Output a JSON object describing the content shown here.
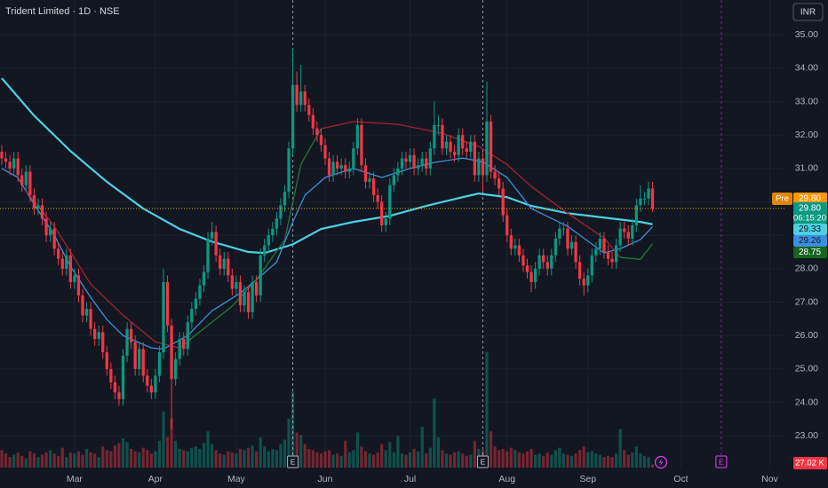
{
  "chart_data": {
    "type": "candlestick",
    "title": "Trident Limited · 1D · NSE",
    "currency": "INR",
    "up_color": "#089981",
    "down_color": "#f23645",
    "grid": true,
    "xlim": [
      -0.44,
      194.07
    ],
    "xticks": [
      {
        "value": 18,
        "label": "Mar"
      },
      {
        "value": 38,
        "label": "Apr"
      },
      {
        "value": 58,
        "label": "May"
      },
      {
        "value": 80,
        "label": "Jun"
      },
      {
        "value": 101,
        "label": "Jul"
      },
      {
        "value": 125,
        "label": "Aug"
      },
      {
        "value": 145,
        "label": "Sep"
      },
      {
        "value": 168,
        "label": "Oct"
      },
      {
        "value": 190,
        "label": "Nov"
      }
    ],
    "ylim": [
      22.05,
      36.04
    ],
    "yticks": [
      {
        "value": 23,
        "label": "23.00"
      },
      {
        "value": 24,
        "label": "24.00"
      },
      {
        "value": 25,
        "label": "25.00"
      },
      {
        "value": 26,
        "label": "26.00"
      },
      {
        "value": 27,
        "label": "27.00"
      },
      {
        "value": 28,
        "label": "28.00"
      },
      {
        "value": 29,
        "label": "29.00"
      },
      {
        "value": 30,
        "label": "30.00"
      },
      {
        "value": 31,
        "label": "31.00"
      },
      {
        "value": 32,
        "label": "32.00"
      },
      {
        "value": 33,
        "label": "33.00"
      },
      {
        "value": 34,
        "label": "34.00"
      },
      {
        "value": 35,
        "label": "35.00"
      }
    ],
    "open": [
      31.5,
      31.3,
      31.2,
      31.0,
      31.3,
      30.8,
      30.5,
      30.9,
      30.2,
      29.8,
      29.9,
      29.5,
      29.0,
      29.2,
      28.6,
      28.3,
      28.0,
      28.4,
      27.6,
      27.8,
      27.2,
      26.6,
      26.8,
      26.2,
      25.9,
      26.1,
      25.5,
      25.0,
      24.6,
      24.3,
      24.1,
      25.4,
      26.2,
      25.8,
      25.0,
      25.6,
      24.8,
      24.5,
      24.3,
      24.8,
      25.5,
      27.6,
      26.3,
      24.7,
      25.3,
      25.9,
      25.6,
      26.4,
      26.8,
      27.1,
      27.5,
      27.9,
      28.9,
      29.1,
      28.4,
      28.0,
      28.3,
      27.8,
      27.4,
      27.6,
      26.9,
      27.3,
      26.7,
      27.6,
      27.2,
      28.4,
      28.7,
      29.0,
      29.2,
      29.5,
      29.9,
      30.3,
      31.6,
      33.5,
      32.9,
      33.3,
      32.9,
      32.6,
      32.2,
      32.0,
      31.7,
      31.3,
      30.8,
      31.2,
      31.0,
      31.1,
      30.9,
      31.0,
      31.6,
      32.3,
      31.1,
      30.6,
      30.7,
      30.2,
      30.0,
      29.3,
      29.5,
      30.5,
      30.8,
      31.0,
      31.3,
      31.2,
      31.4,
      31.0,
      31.1,
      31.3,
      31.0,
      31.6,
      32.3,
      32.3,
      31.6,
      31.8,
      31.5,
      31.4,
      32.0,
      31.6,
      31.5,
      31.8,
      30.8,
      31.3,
      30.8,
      32.4,
      30.9,
      30.7,
      30.4,
      29.6,
      29.0,
      28.6,
      28.7,
      28.4,
      28.1,
      27.9,
      27.6,
      28.0,
      28.4,
      28.2,
      28.0,
      28.4,
      28.9,
      29.2,
      29.2,
      28.6,
      28.8,
      28.2,
      27.7,
      27.5,
      27.8,
      28.4,
      28.6,
      28.9,
      28.5,
      28.3,
      28.2,
      28.7,
      29.2,
      29.1,
      28.9,
      29.3,
      29.9,
      30.1,
      30.1,
      30.4
    ],
    "high": [
      31.7,
      31.5,
      31.4,
      31.5,
      31.5,
      31.0,
      31.1,
      31.1,
      30.4,
      30.1,
      30.1,
      29.7,
      29.4,
      29.4,
      28.8,
      28.5,
      28.6,
      28.6,
      28.0,
      28.0,
      27.4,
      27.0,
      27.0,
      26.4,
      26.3,
      26.3,
      25.7,
      25.2,
      24.8,
      24.5,
      25.6,
      26.4,
      26.4,
      26.0,
      25.8,
      25.8,
      25.0,
      24.7,
      25.0,
      25.7,
      28.0,
      27.8,
      26.5,
      25.5,
      26.1,
      26.1,
      26.6,
      27.0,
      27.3,
      27.7,
      28.1,
      29.1,
      29.4,
      29.3,
      28.6,
      28.5,
      28.5,
      28.0,
      27.8,
      27.8,
      27.5,
      27.5,
      27.8,
      27.8,
      28.6,
      28.9,
      29.2,
      29.4,
      29.7,
      30.1,
      30.5,
      31.8,
      34.6,
      33.9,
      34.1,
      33.5,
      33.1,
      32.8,
      32.4,
      32.2,
      31.9,
      31.5,
      31.4,
      31.4,
      31.3,
      31.3,
      31.2,
      31.8,
      32.5,
      32.5,
      31.3,
      30.9,
      30.9,
      30.4,
      30.2,
      29.7,
      30.7,
      31.0,
      31.2,
      31.5,
      31.5,
      31.6,
      31.6,
      31.3,
      31.5,
      31.5,
      31.8,
      33.0,
      32.6,
      32.5,
      32.0,
      32.0,
      31.7,
      32.2,
      32.2,
      31.8,
      32.0,
      32.0,
      31.5,
      31.5,
      33.6,
      32.6,
      31.1,
      30.9,
      30.6,
      29.8,
      29.2,
      28.9,
      28.9,
      28.6,
      28.3,
      28.1,
      28.2,
      28.6,
      28.6,
      28.4,
      28.6,
      29.1,
      29.4,
      29.4,
      29.4,
      29.0,
      29.0,
      28.4,
      27.9,
      28.0,
      28.6,
      28.8,
      29.1,
      29.1,
      28.7,
      28.5,
      28.9,
      29.4,
      29.4,
      29.3,
      29.5,
      30.1,
      30.5,
      30.3,
      30.6,
      30.6
    ],
    "low": [
      31.1,
      31.0,
      30.8,
      30.8,
      30.6,
      30.3,
      30.3,
      30.0,
      29.6,
      29.6,
      29.3,
      28.8,
      28.8,
      28.4,
      28.1,
      27.8,
      27.8,
      27.4,
      27.4,
      27.0,
      26.4,
      26.4,
      26.0,
      25.7,
      25.7,
      25.3,
      24.8,
      24.4,
      24.1,
      23.9,
      23.9,
      25.2,
      25.6,
      24.8,
      24.8,
      24.6,
      24.3,
      24.1,
      24.1,
      24.6,
      25.3,
      26.1,
      23.2,
      24.5,
      25.1,
      25.4,
      25.4,
      26.2,
      26.6,
      26.9,
      27.3,
      27.7,
      28.7,
      28.2,
      27.8,
      27.8,
      27.6,
      27.2,
      27.2,
      26.7,
      26.7,
      26.5,
      26.5,
      27.0,
      27.0,
      28.2,
      28.5,
      28.8,
      29.0,
      29.3,
      29.7,
      30.1,
      31.4,
      32.7,
      32.7,
      32.7,
      32.4,
      32.0,
      31.8,
      31.5,
      31.1,
      30.6,
      30.6,
      30.8,
      30.8,
      30.7,
      30.7,
      30.8,
      31.4,
      30.9,
      30.4,
      30.4,
      30.0,
      29.8,
      29.1,
      29.1,
      29.3,
      30.3,
      30.6,
      30.8,
      31.0,
      31.0,
      30.8,
      30.8,
      30.9,
      30.8,
      30.8,
      31.4,
      32.0,
      31.4,
      31.4,
      31.3,
      31.2,
      31.2,
      31.4,
      31.3,
      31.3,
      30.6,
      30.6,
      30.3,
      30.6,
      30.7,
      30.5,
      30.2,
      29.4,
      28.8,
      28.4,
      28.4,
      28.2,
      27.9,
      27.7,
      27.3,
      27.4,
      27.8,
      28.0,
      27.8,
      27.8,
      28.2,
      28.7,
      29.0,
      28.4,
      28.4,
      28.0,
      27.5,
      27.2,
      27.3,
      27.6,
      28.2,
      28.4,
      28.3,
      28.1,
      28.0,
      28.0,
      28.5,
      28.9,
      28.7,
      28.7,
      29.1,
      29.7,
      29.9,
      29.9,
      29.7
    ],
    "close": [
      31.3,
      31.2,
      31.0,
      31.3,
      30.8,
      30.5,
      30.9,
      30.2,
      29.8,
      29.9,
      29.5,
      29.0,
      29.2,
      28.6,
      28.3,
      28.0,
      28.4,
      27.6,
      27.8,
      27.2,
      26.6,
      26.8,
      26.2,
      25.9,
      26.1,
      25.5,
      25.0,
      24.6,
      24.3,
      24.1,
      25.4,
      26.2,
      25.8,
      25.0,
      25.6,
      24.8,
      24.5,
      24.3,
      24.8,
      25.5,
      27.6,
      26.3,
      24.7,
      25.3,
      25.9,
      25.6,
      26.4,
      26.8,
      27.1,
      27.5,
      27.9,
      28.9,
      29.1,
      28.4,
      28.0,
      28.3,
      27.8,
      27.4,
      27.6,
      26.9,
      27.3,
      26.7,
      27.6,
      27.2,
      28.4,
      28.7,
      29.0,
      29.2,
      29.5,
      29.9,
      30.3,
      31.6,
      33.5,
      32.9,
      33.3,
      32.9,
      32.6,
      32.2,
      32.0,
      31.7,
      31.3,
      30.8,
      31.2,
      31.0,
      31.1,
      30.9,
      31.0,
      31.6,
      32.3,
      31.1,
      30.6,
      30.7,
      30.2,
      30.0,
      29.3,
      29.5,
      30.5,
      30.8,
      31.0,
      31.3,
      31.2,
      31.4,
      31.0,
      31.1,
      31.3,
      31.0,
      31.6,
      32.3,
      32.3,
      31.6,
      31.8,
      31.5,
      31.4,
      32.0,
      31.6,
      31.5,
      31.8,
      30.8,
      31.3,
      30.8,
      32.4,
      30.9,
      30.7,
      30.4,
      29.6,
      29.0,
      28.6,
      28.7,
      28.4,
      28.1,
      27.9,
      27.6,
      28.0,
      28.4,
      28.2,
      28.0,
      28.4,
      28.9,
      29.2,
      29.2,
      28.6,
      28.8,
      28.2,
      27.7,
      27.5,
      27.8,
      28.4,
      28.6,
      28.9,
      28.5,
      28.3,
      28.2,
      28.7,
      29.2,
      29.1,
      28.9,
      29.3,
      29.9,
      30.1,
      30.1,
      30.4,
      29.8
    ],
    "volume": [
      150000,
      120000,
      90000,
      110000,
      130000,
      100000,
      80000,
      140000,
      120000,
      90000,
      110000,
      130000,
      150000,
      120000,
      100000,
      170000,
      90000,
      130000,
      120000,
      140000,
      110000,
      160000,
      130000,
      120000,
      90000,
      180000,
      150000,
      140000,
      190000,
      210000,
      250000,
      220000,
      160000,
      140000,
      130000,
      170000,
      150000,
      120000,
      140000,
      230000,
      480000,
      260000,
      420000,
      230000,
      160000,
      150000,
      140000,
      170000,
      180000,
      160000,
      210000,
      310000,
      200000,
      150000,
      120000,
      110000,
      140000,
      130000,
      120000,
      160000,
      150000,
      170000,
      190000,
      140000,
      260000,
      180000,
      140000,
      160000,
      150000,
      200000,
      240000,
      420000,
      650000,
      300000,
      280000,
      200000,
      160000,
      150000,
      130000,
      120000,
      140000,
      150000,
      110000,
      120000,
      100000,
      230000,
      130000,
      150000,
      300000,
      180000,
      140000,
      120000,
      110000,
      130000,
      200000,
      150000,
      220000,
      130000,
      270000,
      120000,
      110000,
      130000,
      160000,
      140000,
      350000,
      120000,
      170000,
      590000,
      260000,
      150000,
      120000,
      110000,
      130000,
      140000,
      120000,
      100000,
      110000,
      230000,
      160000,
      150000,
      990000,
      310000,
      180000,
      150000,
      160000,
      140000,
      170000,
      150000,
      130000,
      120000,
      140000,
      160000,
      110000,
      120000,
      100000,
      130000,
      110000,
      150000,
      170000,
      120000,
      110000,
      100000,
      120000,
      150000,
      180000,
      130000,
      140000,
      120000,
      110000,
      90000,
      100000,
      90000,
      120000,
      330000,
      150000,
      110000,
      130000,
      180000,
      120000,
      100000,
      90000,
      27020
    ],
    "volume_lim": [
      0,
      4000000
    ],
    "last_volume": {
      "value": 27020,
      "label": "27.02 K"
    },
    "pre_market": {
      "tag": "Pre",
      "value": 29.8,
      "label": "29.80"
    },
    "last_price": {
      "value": 29.8,
      "label": "29.80"
    },
    "countdown": "06:15:20",
    "series": [
      {
        "color": "#4dd0e1",
        "width": 2.2,
        "x": [
          0,
          8,
          17,
          26,
          35,
          44,
          52,
          61,
          65,
          72,
          79,
          87,
          96,
          105,
          114,
          118,
          125,
          131,
          140,
          149,
          158,
          161
        ],
        "values": [
          33.7,
          32.58,
          31.52,
          30.6,
          29.8,
          29.19,
          28.81,
          28.5,
          28.47,
          28.73,
          29.19,
          29.4,
          29.58,
          29.88,
          30.14,
          30.25,
          30.14,
          29.88,
          29.66,
          29.53,
          29.4,
          29.33
        ],
        "end_label": {
          "value": 29.33,
          "label": "29.33"
        }
      },
      {
        "color": "#3b8fe0",
        "width": 1.3,
        "x": [
          0,
          4,
          8,
          13,
          17,
          22,
          26,
          30,
          37,
          40,
          46,
          52,
          59,
          63,
          68,
          72,
          75,
          80,
          87,
          94,
          101,
          107,
          114,
          119,
          125,
          131,
          140,
          149,
          153,
          158,
          161
        ],
        "values": [
          31.0,
          30.73,
          29.93,
          29.0,
          28.07,
          27.14,
          26.48,
          26.0,
          25.63,
          25.6,
          26.0,
          26.74,
          27.27,
          27.67,
          28.2,
          29.4,
          30.2,
          30.73,
          31.0,
          30.73,
          31.0,
          31.18,
          31.31,
          31.2,
          30.73,
          29.8,
          29.27,
          28.47,
          28.6,
          28.87,
          29.26
        ],
        "end_label": {
          "value": 29.26,
          "label": "29.26"
        }
      },
      {
        "color": "#a1242f",
        "width": 1.3,
        "x": [
          6,
          13,
          22,
          30,
          38,
          44,
          60,
          79,
          87,
          98,
          109,
          118,
          125,
          131,
          140,
          149,
          153
        ],
        "values": [
          30.33,
          29.27,
          27.54,
          26.61,
          25.81,
          25.63,
          null,
          32.19,
          32.4,
          32.32,
          32.05,
          31.66,
          31.12,
          30.46,
          29.66,
          28.92,
          28.34
        ]
      },
      {
        "color": "#1e7b34",
        "width": 1.3,
        "x": [
          44,
          50,
          57,
          63,
          70,
          74,
          79,
          120,
          153,
          158,
          161
        ],
        "values": [
          25.63,
          26.21,
          26.88,
          27.67,
          28.87,
          31.12,
          32.19,
          null,
          28.34,
          28.28,
          28.75
        ],
        "end_label": {
          "value": 28.75,
          "label": "28.75"
        }
      }
    ],
    "events": [
      {
        "x": 72,
        "label": "E"
      },
      {
        "x": 119,
        "label": "E"
      },
      {
        "x": 178,
        "label": "E",
        "upcoming": true
      }
    ]
  }
}
